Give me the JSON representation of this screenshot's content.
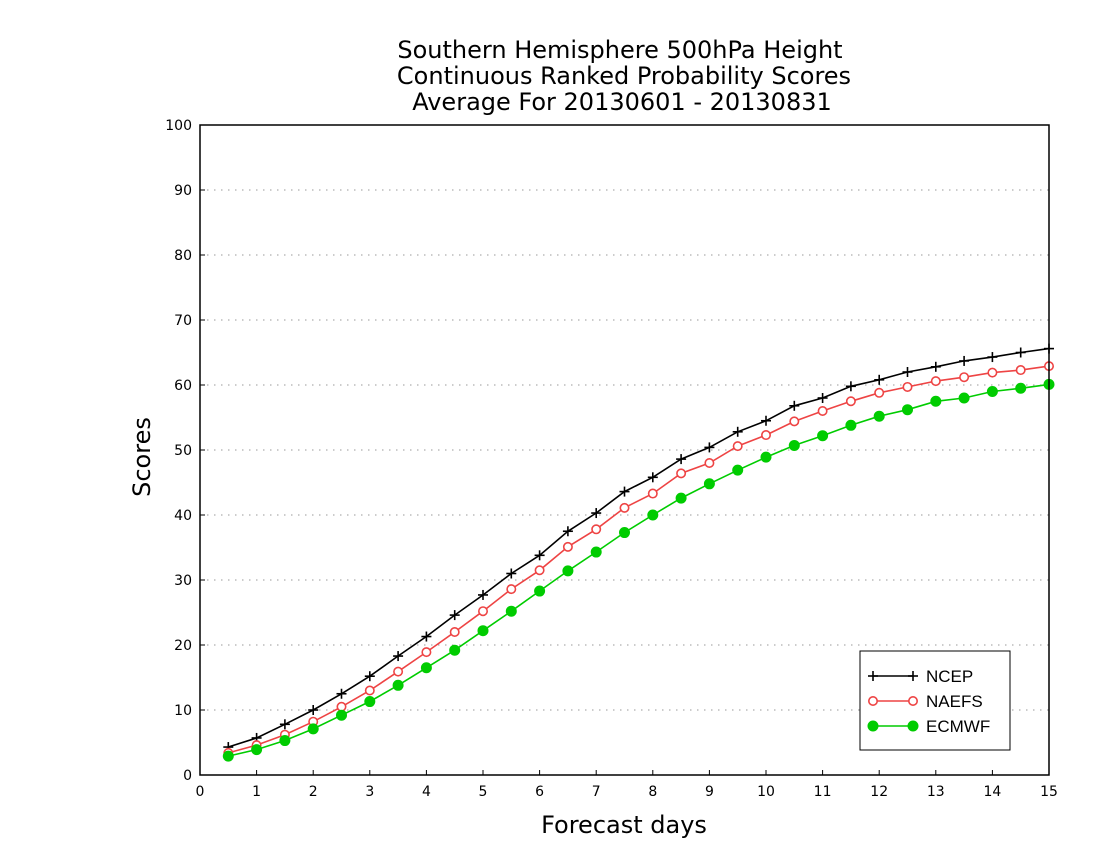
{
  "chart_data": {
    "type": "line",
    "title": [
      "Southern Hemisphere 500hPa Height",
      "Continuous Ranked Probability Scores",
      "Average For 20130601 - 20130831"
    ],
    "xlabel": "Forecast days",
    "ylabel": "Scores",
    "xlim": [
      0,
      15
    ],
    "ylim": [
      0,
      100
    ],
    "xticks": [
      "0",
      "1",
      "2",
      "3",
      "4",
      "5",
      "6",
      "7",
      "8",
      "9",
      "10",
      "11",
      "12",
      "13",
      "14",
      "15"
    ],
    "yticks": [
      "0",
      "10",
      "20",
      "30",
      "40",
      "50",
      "60",
      "70",
      "80",
      "90",
      "100"
    ],
    "grid": true,
    "legend_position": "bottom-right",
    "x": [
      0.5,
      1,
      1.5,
      2,
      2.5,
      3,
      3.5,
      4,
      4.5,
      5,
      5.5,
      6,
      6.5,
      7,
      7.5,
      8,
      8.5,
      9,
      9.5,
      10,
      10.5,
      11,
      11.5,
      12,
      12.5,
      13,
      13.5,
      14,
      14.5,
      15
    ],
    "series": [
      {
        "name": "NCEP",
        "color": "#000000",
        "marker": "plus",
        "values": [
          4.3,
          5.7,
          7.8,
          10.0,
          12.5,
          15.2,
          18.3,
          21.3,
          24.6,
          27.7,
          31.0,
          33.8,
          37.5,
          40.3,
          43.6,
          45.8,
          48.6,
          50.4,
          52.8,
          54.5,
          56.8,
          58.0,
          59.8,
          60.8,
          62.0,
          62.8,
          63.7,
          64.3,
          65.0,
          65.6
        ]
      },
      {
        "name": "NAEFS",
        "color": "#ee4444",
        "marker": "open-circle",
        "values": [
          3.4,
          4.6,
          6.2,
          8.2,
          10.5,
          13.0,
          15.9,
          18.9,
          22.0,
          25.2,
          28.6,
          31.5,
          35.1,
          37.8,
          41.1,
          43.3,
          46.4,
          48.0,
          50.6,
          52.3,
          54.4,
          56.0,
          57.5,
          58.8,
          59.7,
          60.6,
          61.2,
          61.9,
          62.3,
          62.9
        ]
      },
      {
        "name": "ECMWF",
        "color": "#00cc00",
        "marker": "filled-circle",
        "values": [
          2.9,
          3.9,
          5.3,
          7.1,
          9.2,
          11.3,
          13.8,
          16.5,
          19.2,
          22.2,
          25.2,
          28.3,
          31.4,
          34.3,
          37.3,
          40.0,
          42.6,
          44.8,
          46.9,
          48.9,
          50.7,
          52.2,
          53.8,
          55.2,
          56.2,
          57.5,
          58.0,
          59.0,
          59.5,
          60.1
        ]
      }
    ]
  }
}
